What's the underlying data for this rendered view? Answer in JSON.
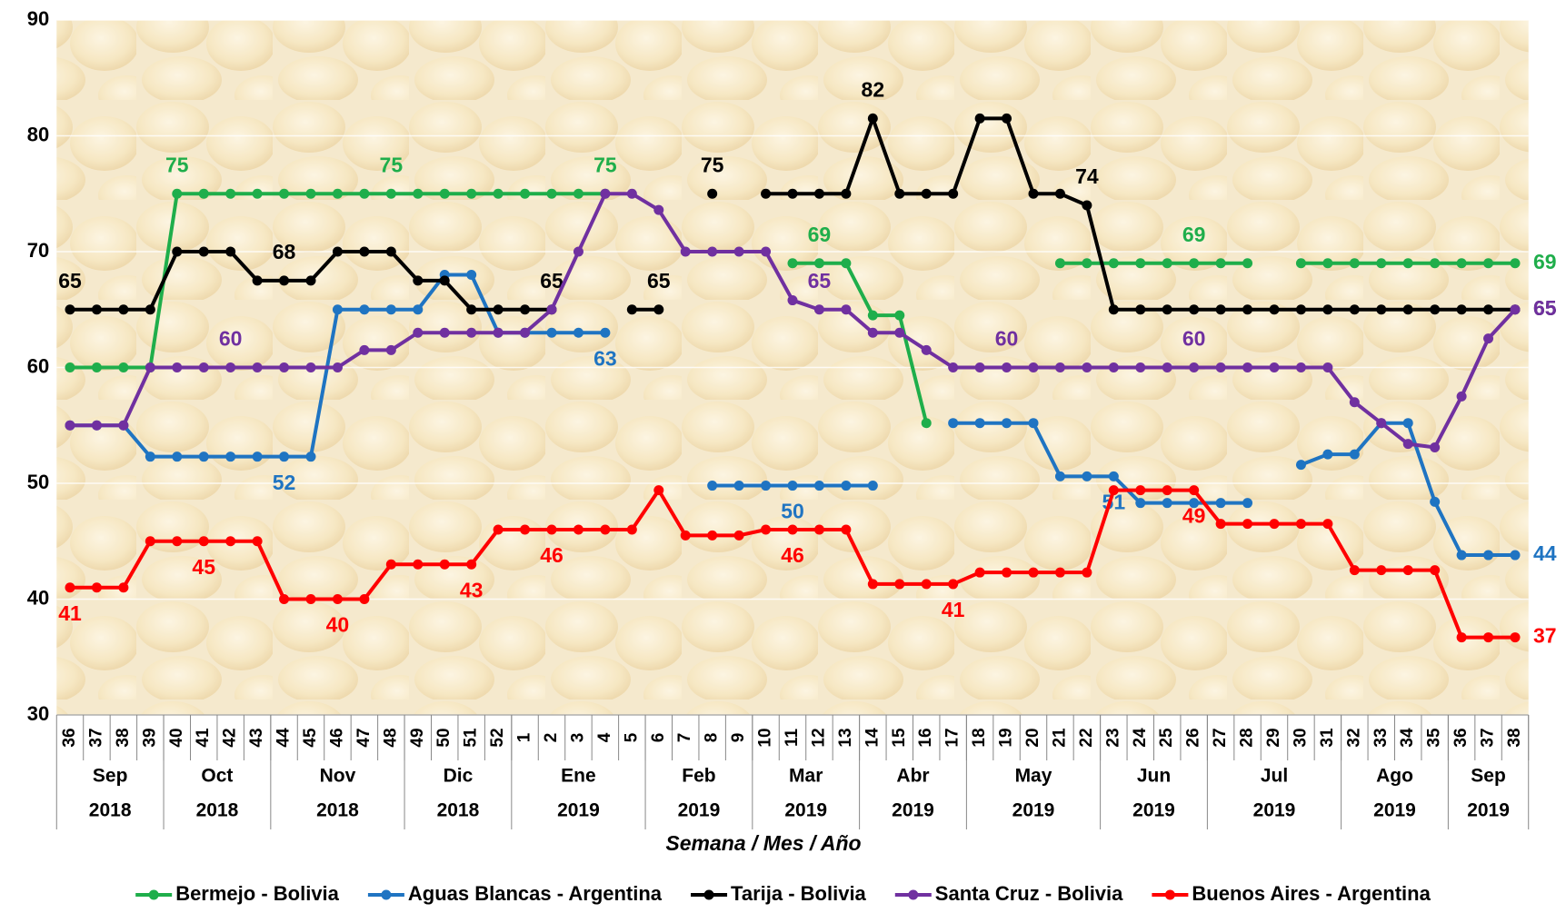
{
  "chart_data": {
    "type": "line",
    "x_label": "Semana / Mes / Año",
    "categories": [
      36,
      37,
      38,
      39,
      40,
      41,
      42,
      43,
      44,
      45,
      46,
      47,
      48,
      49,
      50,
      51,
      52,
      1,
      2,
      3,
      4,
      5,
      6,
      7,
      8,
      9,
      10,
      11,
      12,
      13,
      14,
      15,
      16,
      17,
      18,
      19,
      20,
      21,
      22,
      23,
      24,
      25,
      26,
      27,
      28,
      29,
      30,
      31,
      32,
      33,
      34,
      35,
      36,
      37,
      38
    ],
    "month_groups": [
      {
        "month": "Sep",
        "year": "2018",
        "weeks": 4
      },
      {
        "month": "Oct",
        "year": "2018",
        "weeks": 4
      },
      {
        "month": "Nov",
        "year": "2018",
        "weeks": 5
      },
      {
        "month": "Dic",
        "year": "2018",
        "weeks": 4
      },
      {
        "month": "Ene",
        "year": "2019",
        "weeks": 5
      },
      {
        "month": "Feb",
        "year": "2019",
        "weeks": 4
      },
      {
        "month": "Mar",
        "year": "2019",
        "weeks": 4
      },
      {
        "month": "Abr",
        "year": "2019",
        "weeks": 4
      },
      {
        "month": "May",
        "year": "2019",
        "weeks": 5
      },
      {
        "month": "Jun",
        "year": "2019",
        "weeks": 4
      },
      {
        "month": "Jul",
        "year": "2019",
        "weeks": 5
      },
      {
        "month": "Ago",
        "year": "2019",
        "weeks": 4
      },
      {
        "month": "Sep",
        "year": "2019",
        "weeks": 3
      }
    ],
    "ylim": [
      30,
      90
    ],
    "yticks": [
      30,
      40,
      50,
      60,
      70,
      80,
      90
    ],
    "grid": true,
    "legend": "bottom",
    "series": [
      {
        "name": "Bermejo - Bolivia",
        "color": "#1fae4b",
        "values": [
          60,
          60,
          60,
          60,
          75,
          75,
          75,
          75,
          75,
          75,
          75,
          75,
          75,
          75,
          75,
          75,
          75,
          75,
          75,
          75,
          75,
          null,
          null,
          null,
          null,
          null,
          null,
          69,
          69,
          69,
          64.5,
          64.5,
          55.2,
          null,
          null,
          null,
          null,
          69,
          69,
          69,
          69,
          69,
          69,
          69,
          69,
          null,
          69,
          69,
          69,
          69,
          69,
          69,
          69,
          69,
          69
        ],
        "value_labels": [
          null,
          null,
          null,
          null,
          "75",
          null,
          null,
          null,
          null,
          null,
          null,
          null,
          "75",
          null,
          null,
          null,
          null,
          null,
          null,
          null,
          "75",
          null,
          null,
          null,
          null,
          null,
          null,
          null,
          "69",
          null,
          null,
          null,
          null,
          null,
          null,
          null,
          null,
          null,
          null,
          null,
          null,
          null,
          "69",
          null,
          null,
          null,
          null,
          null,
          null,
          null,
          null,
          null,
          null,
          null,
          "69"
        ]
      },
      {
        "name": "Aguas Blancas - Argentina",
        "color": "#1f74c2",
        "values": [
          55,
          55,
          55,
          52.3,
          52.3,
          52.3,
          52.3,
          52.3,
          52.3,
          52.3,
          65,
          65,
          65,
          65,
          68,
          68,
          63,
          63,
          63,
          63,
          63,
          null,
          null,
          null,
          49.8,
          49.8,
          49.8,
          49.8,
          49.8,
          49.8,
          49.8,
          null,
          null,
          55.2,
          55.2,
          55.2,
          55.2,
          50.6,
          50.6,
          50.6,
          48.3,
          48.3,
          48.3,
          48.3,
          48.3,
          null,
          51.6,
          52.5,
          52.5,
          55.2,
          55.2,
          48.4,
          43.8,
          43.8,
          43.8
        ],
        "value_labels": [
          null,
          null,
          null,
          null,
          null,
          null,
          null,
          null,
          "52",
          null,
          null,
          null,
          null,
          null,
          null,
          null,
          null,
          null,
          null,
          null,
          "63",
          null,
          null,
          null,
          null,
          null,
          null,
          "50",
          null,
          null,
          null,
          null,
          null,
          null,
          null,
          null,
          null,
          null,
          null,
          "51",
          null,
          null,
          null,
          null,
          null,
          null,
          null,
          null,
          null,
          null,
          null,
          null,
          null,
          null,
          "44"
        ]
      },
      {
        "name": "Tarija - Bolivia",
        "color": "#000000",
        "values": [
          65,
          65,
          65,
          65,
          70,
          70,
          70,
          67.5,
          67.5,
          67.5,
          70,
          70,
          70,
          67.5,
          67.5,
          65,
          65,
          65,
          65,
          null,
          null,
          65,
          65,
          null,
          75,
          null,
          75,
          75,
          75,
          75,
          81.5,
          75,
          75,
          75,
          81.5,
          81.5,
          75,
          75,
          74,
          65,
          65,
          65,
          65,
          65,
          65,
          65,
          65,
          65,
          65,
          65,
          65,
          65,
          65,
          65,
          65
        ],
        "value_labels": [
          "65",
          null,
          null,
          null,
          null,
          null,
          null,
          null,
          "68",
          null,
          null,
          null,
          null,
          null,
          null,
          null,
          null,
          null,
          "65",
          null,
          null,
          null,
          "65",
          null,
          "75",
          null,
          null,
          null,
          null,
          null,
          "82",
          null,
          null,
          null,
          null,
          null,
          null,
          null,
          "74",
          null,
          null,
          null,
          null,
          null,
          null,
          null,
          null,
          null,
          null,
          null,
          null,
          null,
          null,
          null,
          "65"
        ]
      },
      {
        "name": "Santa Cruz - Bolivia",
        "color": "#7030a0",
        "values": [
          55,
          55,
          55,
          60,
          60,
          60,
          60,
          60,
          60,
          60,
          60,
          61.5,
          61.5,
          63,
          63,
          63,
          63,
          63,
          65,
          70,
          75,
          75,
          73.6,
          70,
          70,
          70,
          70,
          65.8,
          65,
          65,
          63,
          63,
          61.5,
          60,
          60,
          60,
          60,
          60,
          60,
          60,
          60,
          60,
          60,
          60,
          60,
          60,
          60,
          60,
          57,
          55.2,
          53.4,
          53.1,
          57.5,
          62.5,
          65
        ],
        "value_labels": [
          null,
          null,
          null,
          null,
          null,
          null,
          "60",
          null,
          null,
          null,
          null,
          null,
          null,
          null,
          null,
          null,
          null,
          null,
          null,
          null,
          null,
          null,
          null,
          null,
          null,
          null,
          null,
          null,
          "65",
          null,
          null,
          null,
          null,
          null,
          null,
          "60",
          null,
          null,
          null,
          null,
          null,
          null,
          "60",
          null,
          null,
          null,
          null,
          null,
          null,
          null,
          null,
          null,
          null,
          null,
          "65"
        ]
      },
      {
        "name": "Buenos Aires - Argentina",
        "color": "#ff0000",
        "values": [
          41,
          41,
          41,
          45,
          45,
          45,
          45,
          45,
          40,
          40,
          40,
          40,
          43,
          43,
          43,
          43,
          46,
          46,
          46,
          46,
          46,
          46,
          49.4,
          45.5,
          45.5,
          45.5,
          46,
          46,
          46,
          46,
          41.3,
          41.3,
          41.3,
          41.3,
          42.3,
          42.3,
          42.3,
          42.3,
          42.3,
          49.4,
          49.4,
          49.4,
          49.4,
          46.5,
          46.5,
          46.5,
          46.5,
          46.5,
          42.5,
          42.5,
          42.5,
          42.5,
          36.7,
          36.7,
          36.7
        ],
        "value_labels": [
          "41",
          null,
          null,
          null,
          null,
          "45",
          null,
          null,
          null,
          null,
          "40",
          null,
          null,
          null,
          null,
          "43",
          null,
          null,
          "46",
          null,
          null,
          null,
          null,
          null,
          null,
          null,
          null,
          "46",
          null,
          null,
          null,
          null,
          null,
          "41",
          null,
          null,
          null,
          null,
          null,
          null,
          null,
          null,
          "49",
          null,
          null,
          null,
          null,
          null,
          null,
          null,
          null,
          null,
          null,
          null,
          "37"
        ]
      }
    ]
  }
}
